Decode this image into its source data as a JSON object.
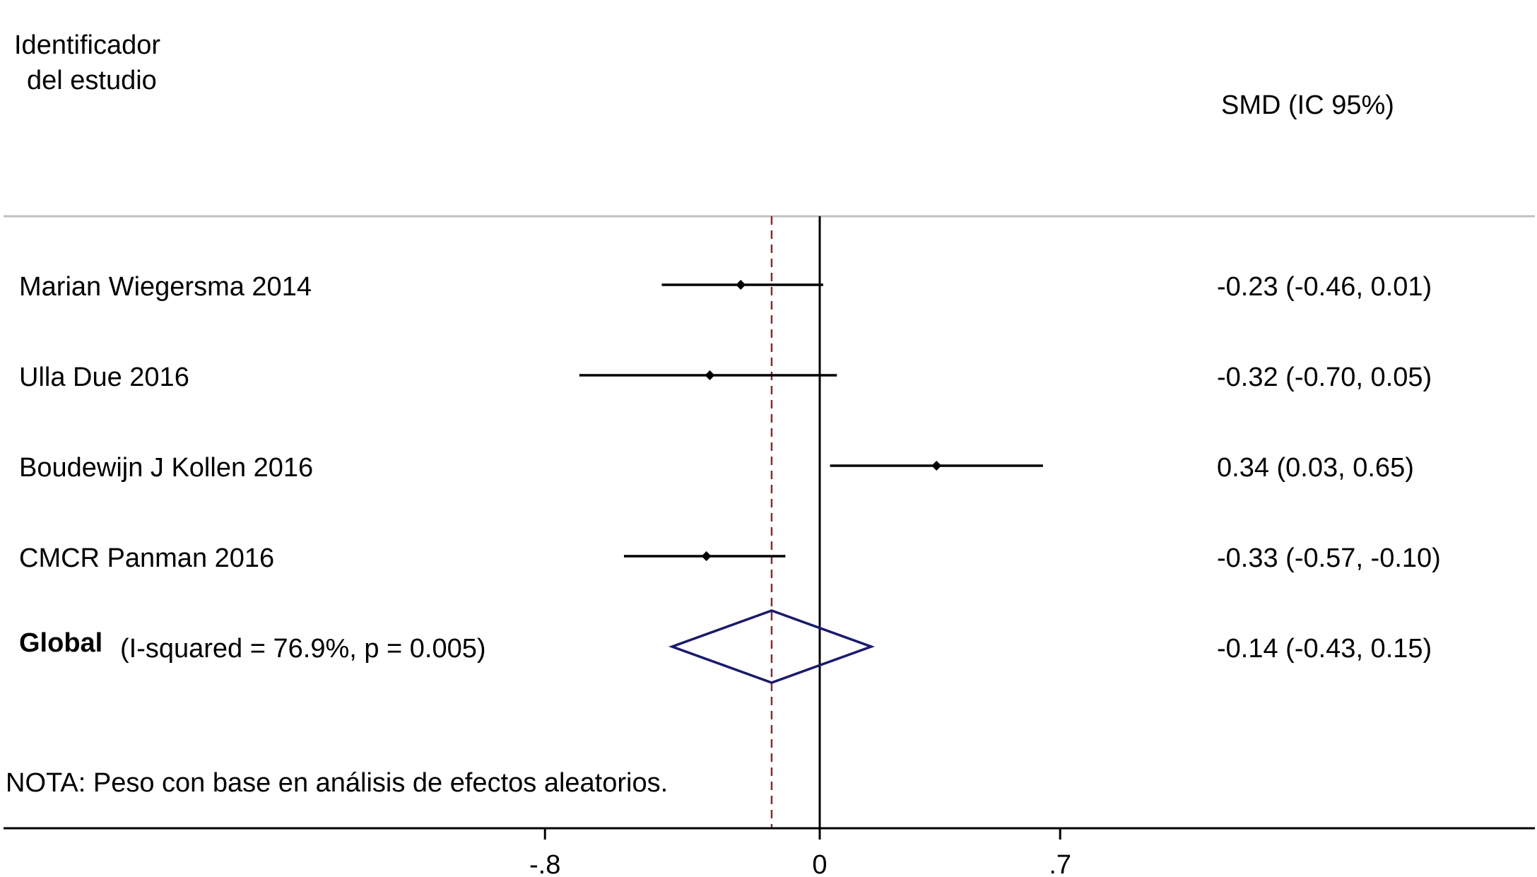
{
  "headers": {
    "study_line1": "Identificador",
    "study_line2": "del estudio",
    "effect": "SMD (IC 95%)"
  },
  "chart_data": {
    "type": "forest",
    "effect_measure": "SMD",
    "xlim": [
      -0.8,
      0.7
    ],
    "xticks": [
      -0.8,
      0,
      0.7
    ],
    "xtick_labels": [
      "-.8",
      "0",
      ".7"
    ],
    "null_line": 0,
    "pooled_line": -0.14,
    "studies": [
      {
        "label": "Marian Wiegersma 2014",
        "estimate": -0.23,
        "lower": -0.46,
        "upper": 0.01,
        "text": "-0.23 (-0.46, 0.01)"
      },
      {
        "label": "Ulla Due 2016",
        "estimate": -0.32,
        "lower": -0.7,
        "upper": 0.05,
        "text": "-0.32 (-0.70, 0.05)"
      },
      {
        "label": "Boudewijn J Kollen 2016",
        "estimate": 0.34,
        "lower": 0.03,
        "upper": 0.65,
        "text": "0.34 (0.03, 0.65)"
      },
      {
        "label": "CMCR Panman  2016",
        "estimate": -0.33,
        "lower": -0.57,
        "upper": -0.1,
        "text": "-0.33 (-0.57, -0.10)"
      }
    ],
    "overall": {
      "label": "Global",
      "heterogeneity": "(I-squared = 76.9%, p = 0.005)",
      "estimate": -0.14,
      "lower": -0.43,
      "upper": 0.15,
      "text": "-0.14 (-0.43, 0.15)"
    },
    "note": "NOTA: Peso con base en análisis de efectos aleatorios.",
    "colors": {
      "ci_line": "#000000",
      "point": "#000000",
      "diamond": "#1a1a6e",
      "pooled_line": "#8b2a2a",
      "header_rule": "#c0c0c0",
      "axis": "#000000"
    }
  }
}
